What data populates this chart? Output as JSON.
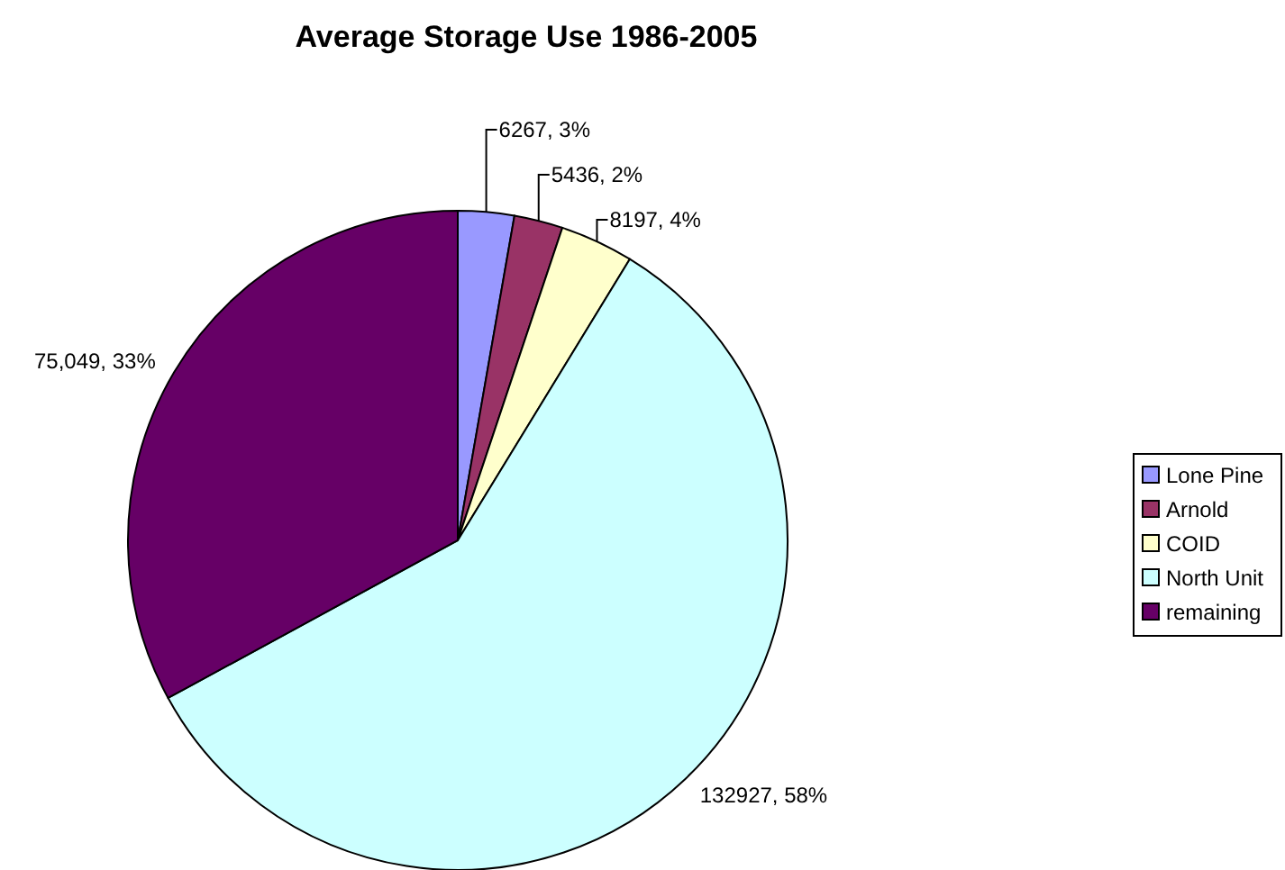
{
  "chart_data": {
    "type": "pie",
    "title": "Average Storage Use 1986-2005",
    "categories": [
      "Lone Pine",
      "Arnold",
      "COID",
      "North Unit",
      "remaining"
    ],
    "values": [
      6267,
      5436,
      8197,
      132927,
      75049
    ],
    "value_labels": [
      "6267, 3%",
      "5436, 2%",
      "8197, 4%",
      "132927, 58%",
      "75,049, 33%"
    ],
    "colors": [
      "#9999ff",
      "#993366",
      "#ffffcc",
      "#ccffff",
      "#660066"
    ],
    "legend": "right"
  }
}
